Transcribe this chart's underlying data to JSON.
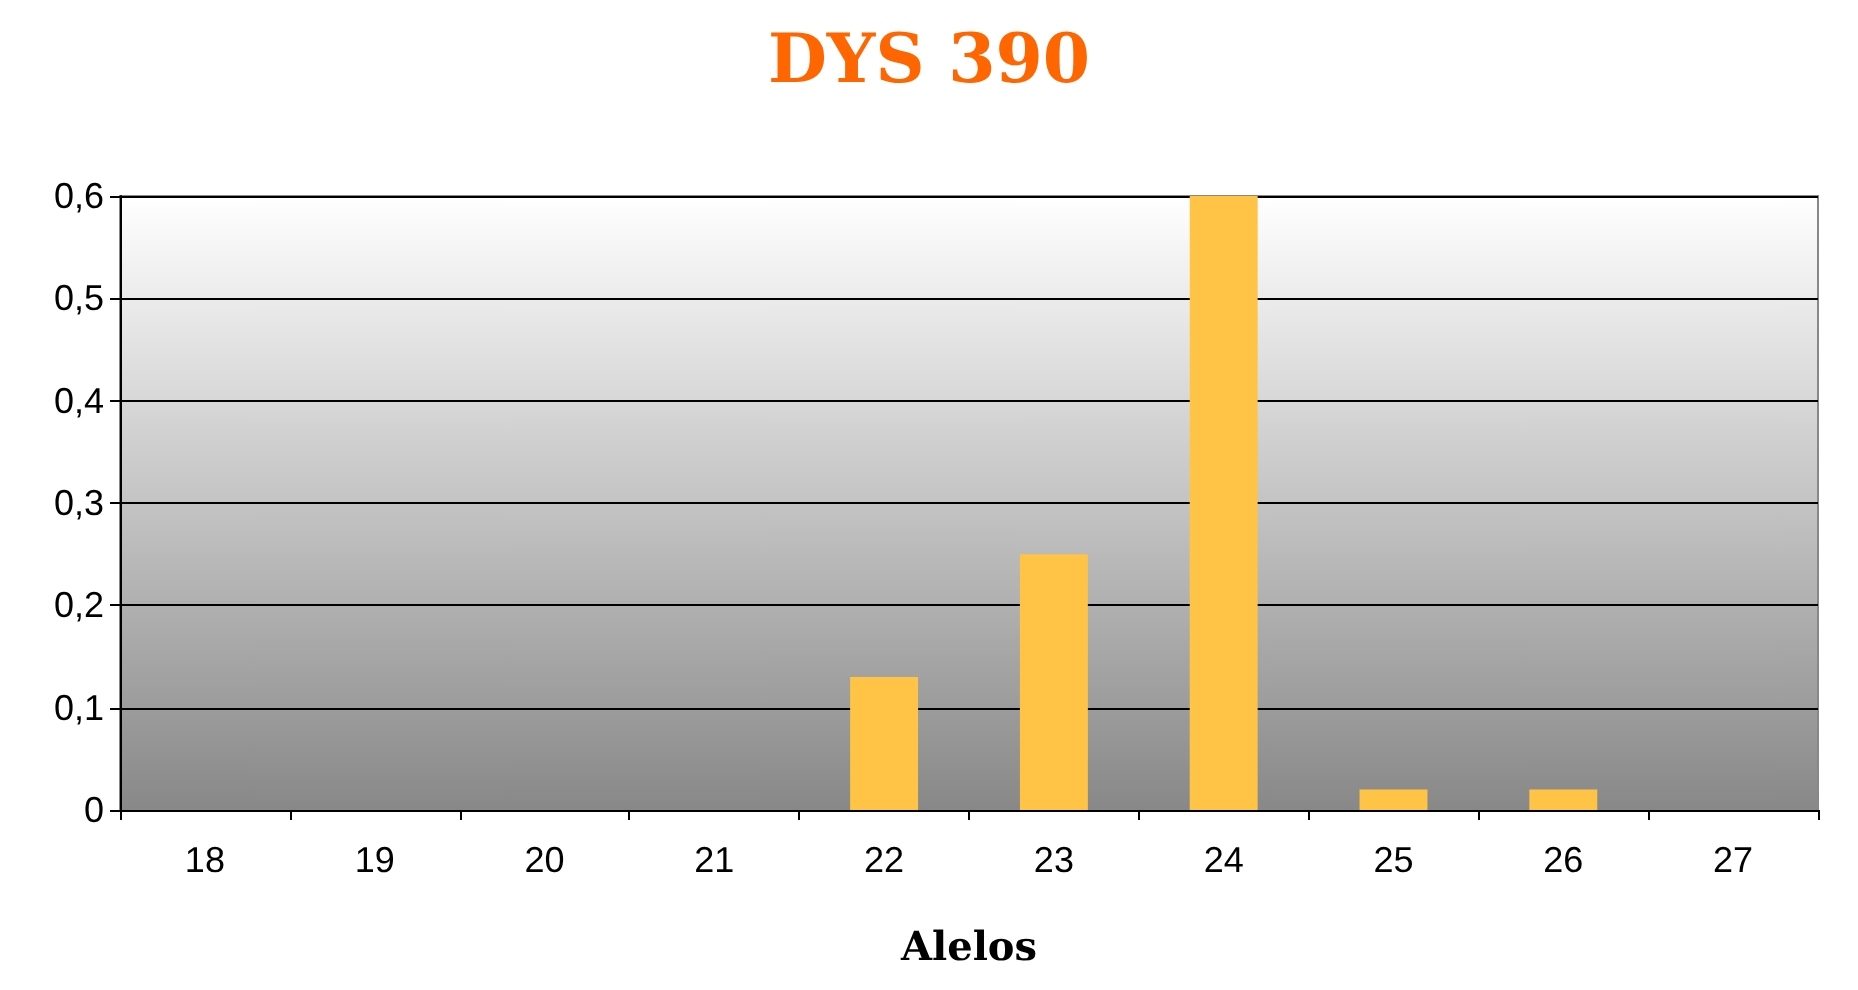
{
  "chart_data": {
    "type": "bar",
    "title": "DYS 390",
    "xlabel": "Alelos",
    "categories": [
      "18",
      "19",
      "20",
      "21",
      "22",
      "23",
      "24",
      "25",
      "26",
      "27"
    ],
    "values": [
      0,
      0,
      0,
      0,
      0.13,
      0.25,
      0.6,
      0.02,
      0.02,
      0
    ],
    "color": "#ffc445",
    "ylim": [
      0,
      0.6
    ],
    "yticks": [
      {
        "value": 0,
        "label": "0"
      },
      {
        "value": 0.1,
        "label": "0,1"
      },
      {
        "value": 0.2,
        "label": "0,2"
      },
      {
        "value": 0.3,
        "label": "0,3"
      },
      {
        "value": 0.4,
        "label": "0,4"
      },
      {
        "value": 0.5,
        "label": "0,5"
      },
      {
        "value": 0.6,
        "label": "0,6"
      }
    ],
    "grid": true
  }
}
